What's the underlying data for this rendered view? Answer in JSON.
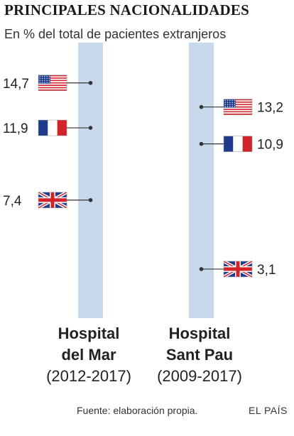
{
  "title": "PRINCIPALES NACIONALIDADES",
  "subtitle": "En % del total de pacientes extranjeros",
  "source": "Fuente: elaboración propia.",
  "brand": "EL PAÍS",
  "colors": {
    "bar": "#c9d9ec",
    "leader": "#333333",
    "flag_blue": "#1f3c8c",
    "flag_red": "#d2232a"
  },
  "chart_data": {
    "type": "scatter",
    "title": "PRINCIPALES NACIONALIDADES",
    "subtitle": "En % del total de pacientes extranjeros",
    "ylim": [
      0,
      16
    ],
    "hospitals": [
      {
        "name_line1": "Hospital",
        "name_line2": "del Mar",
        "period": "(2012-2017)",
        "label_side": "left",
        "points": [
          {
            "country": "Estados Unidos",
            "flag": "us-flag-icon",
            "value": 14.7,
            "label": "14,7"
          },
          {
            "country": "Francia",
            "flag": "france-flag-icon",
            "value": 11.9,
            "label": "11,9"
          },
          {
            "country": "Reino Unido",
            "flag": "uk-flag-icon",
            "value": 7.4,
            "label": "7,4"
          }
        ]
      },
      {
        "name_line1": "Hospital",
        "name_line2": "Sant Pau",
        "period": "(2009-2017)",
        "label_side": "right",
        "points": [
          {
            "country": "Estados Unidos",
            "flag": "us-flag-icon",
            "value": 13.2,
            "label": "13,2"
          },
          {
            "country": "Francia",
            "flag": "france-flag-icon",
            "value": 10.9,
            "label": "10,9"
          },
          {
            "country": "Reino Unido",
            "flag": "uk-flag-icon",
            "value": 3.1,
            "label": "3,1"
          }
        ]
      }
    ]
  }
}
